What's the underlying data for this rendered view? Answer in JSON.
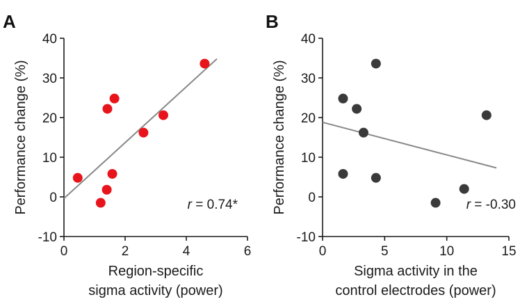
{
  "chart_data": [
    {
      "panel": "A",
      "type": "scatter",
      "title": "",
      "xlabel_lines": [
        "Region-specific",
        "sigma activity (power)"
      ],
      "ylabel": "Performance change (%)",
      "xlim": [
        0,
        6
      ],
      "ylim": [
        -10,
        40
      ],
      "xticks": [
        0,
        2,
        4,
        6
      ],
      "yticks": [
        -10,
        0,
        10,
        20,
        30,
        40
      ],
      "grid": false,
      "point_color": "#e8141b",
      "points": [
        {
          "x": 0.45,
          "y": 4.8
        },
        {
          "x": 1.2,
          "y": -1.5
        },
        {
          "x": 1.4,
          "y": 1.8
        },
        {
          "x": 1.42,
          "y": 22.2
        },
        {
          "x": 1.58,
          "y": 5.8
        },
        {
          "x": 1.65,
          "y": 24.8
        },
        {
          "x": 2.6,
          "y": 16.2
        },
        {
          "x": 3.25,
          "y": 20.6
        },
        {
          "x": 4.6,
          "y": 33.6
        }
      ],
      "fit_line": {
        "x": [
          0,
          5.0
        ],
        "y": [
          -0.4,
          34.8
        ],
        "color": "#888888"
      },
      "annotation": {
        "prefix": "r",
        "text": " = 0.74*"
      }
    },
    {
      "panel": "B",
      "type": "scatter",
      "title": "",
      "xlabel_lines": [
        "Sigma activity in the",
        "control electrodes (power)"
      ],
      "ylabel": "Performance change (%)",
      "xlim": [
        0,
        15
      ],
      "ylim": [
        -10,
        40
      ],
      "xticks": [
        0,
        5,
        10,
        15
      ],
      "yticks": [
        -10,
        0,
        10,
        20,
        30,
        40
      ],
      "grid": false,
      "point_color": "#3a3a3a",
      "points": [
        {
          "x": 1.65,
          "y": 24.8
        },
        {
          "x": 1.65,
          "y": 5.8
        },
        {
          "x": 2.75,
          "y": 22.2
        },
        {
          "x": 3.3,
          "y": 16.2
        },
        {
          "x": 4.3,
          "y": 33.6
        },
        {
          "x": 4.3,
          "y": 4.8
        },
        {
          "x": 9.1,
          "y": -1.5
        },
        {
          "x": 11.4,
          "y": 2.0
        },
        {
          "x": 13.2,
          "y": 20.6
        }
      ],
      "fit_line": {
        "x": [
          0,
          14
        ],
        "y": [
          18.8,
          7.3
        ],
        "color": "#888888"
      },
      "annotation": {
        "prefix": "r",
        "text": " = -0.30"
      }
    }
  ]
}
